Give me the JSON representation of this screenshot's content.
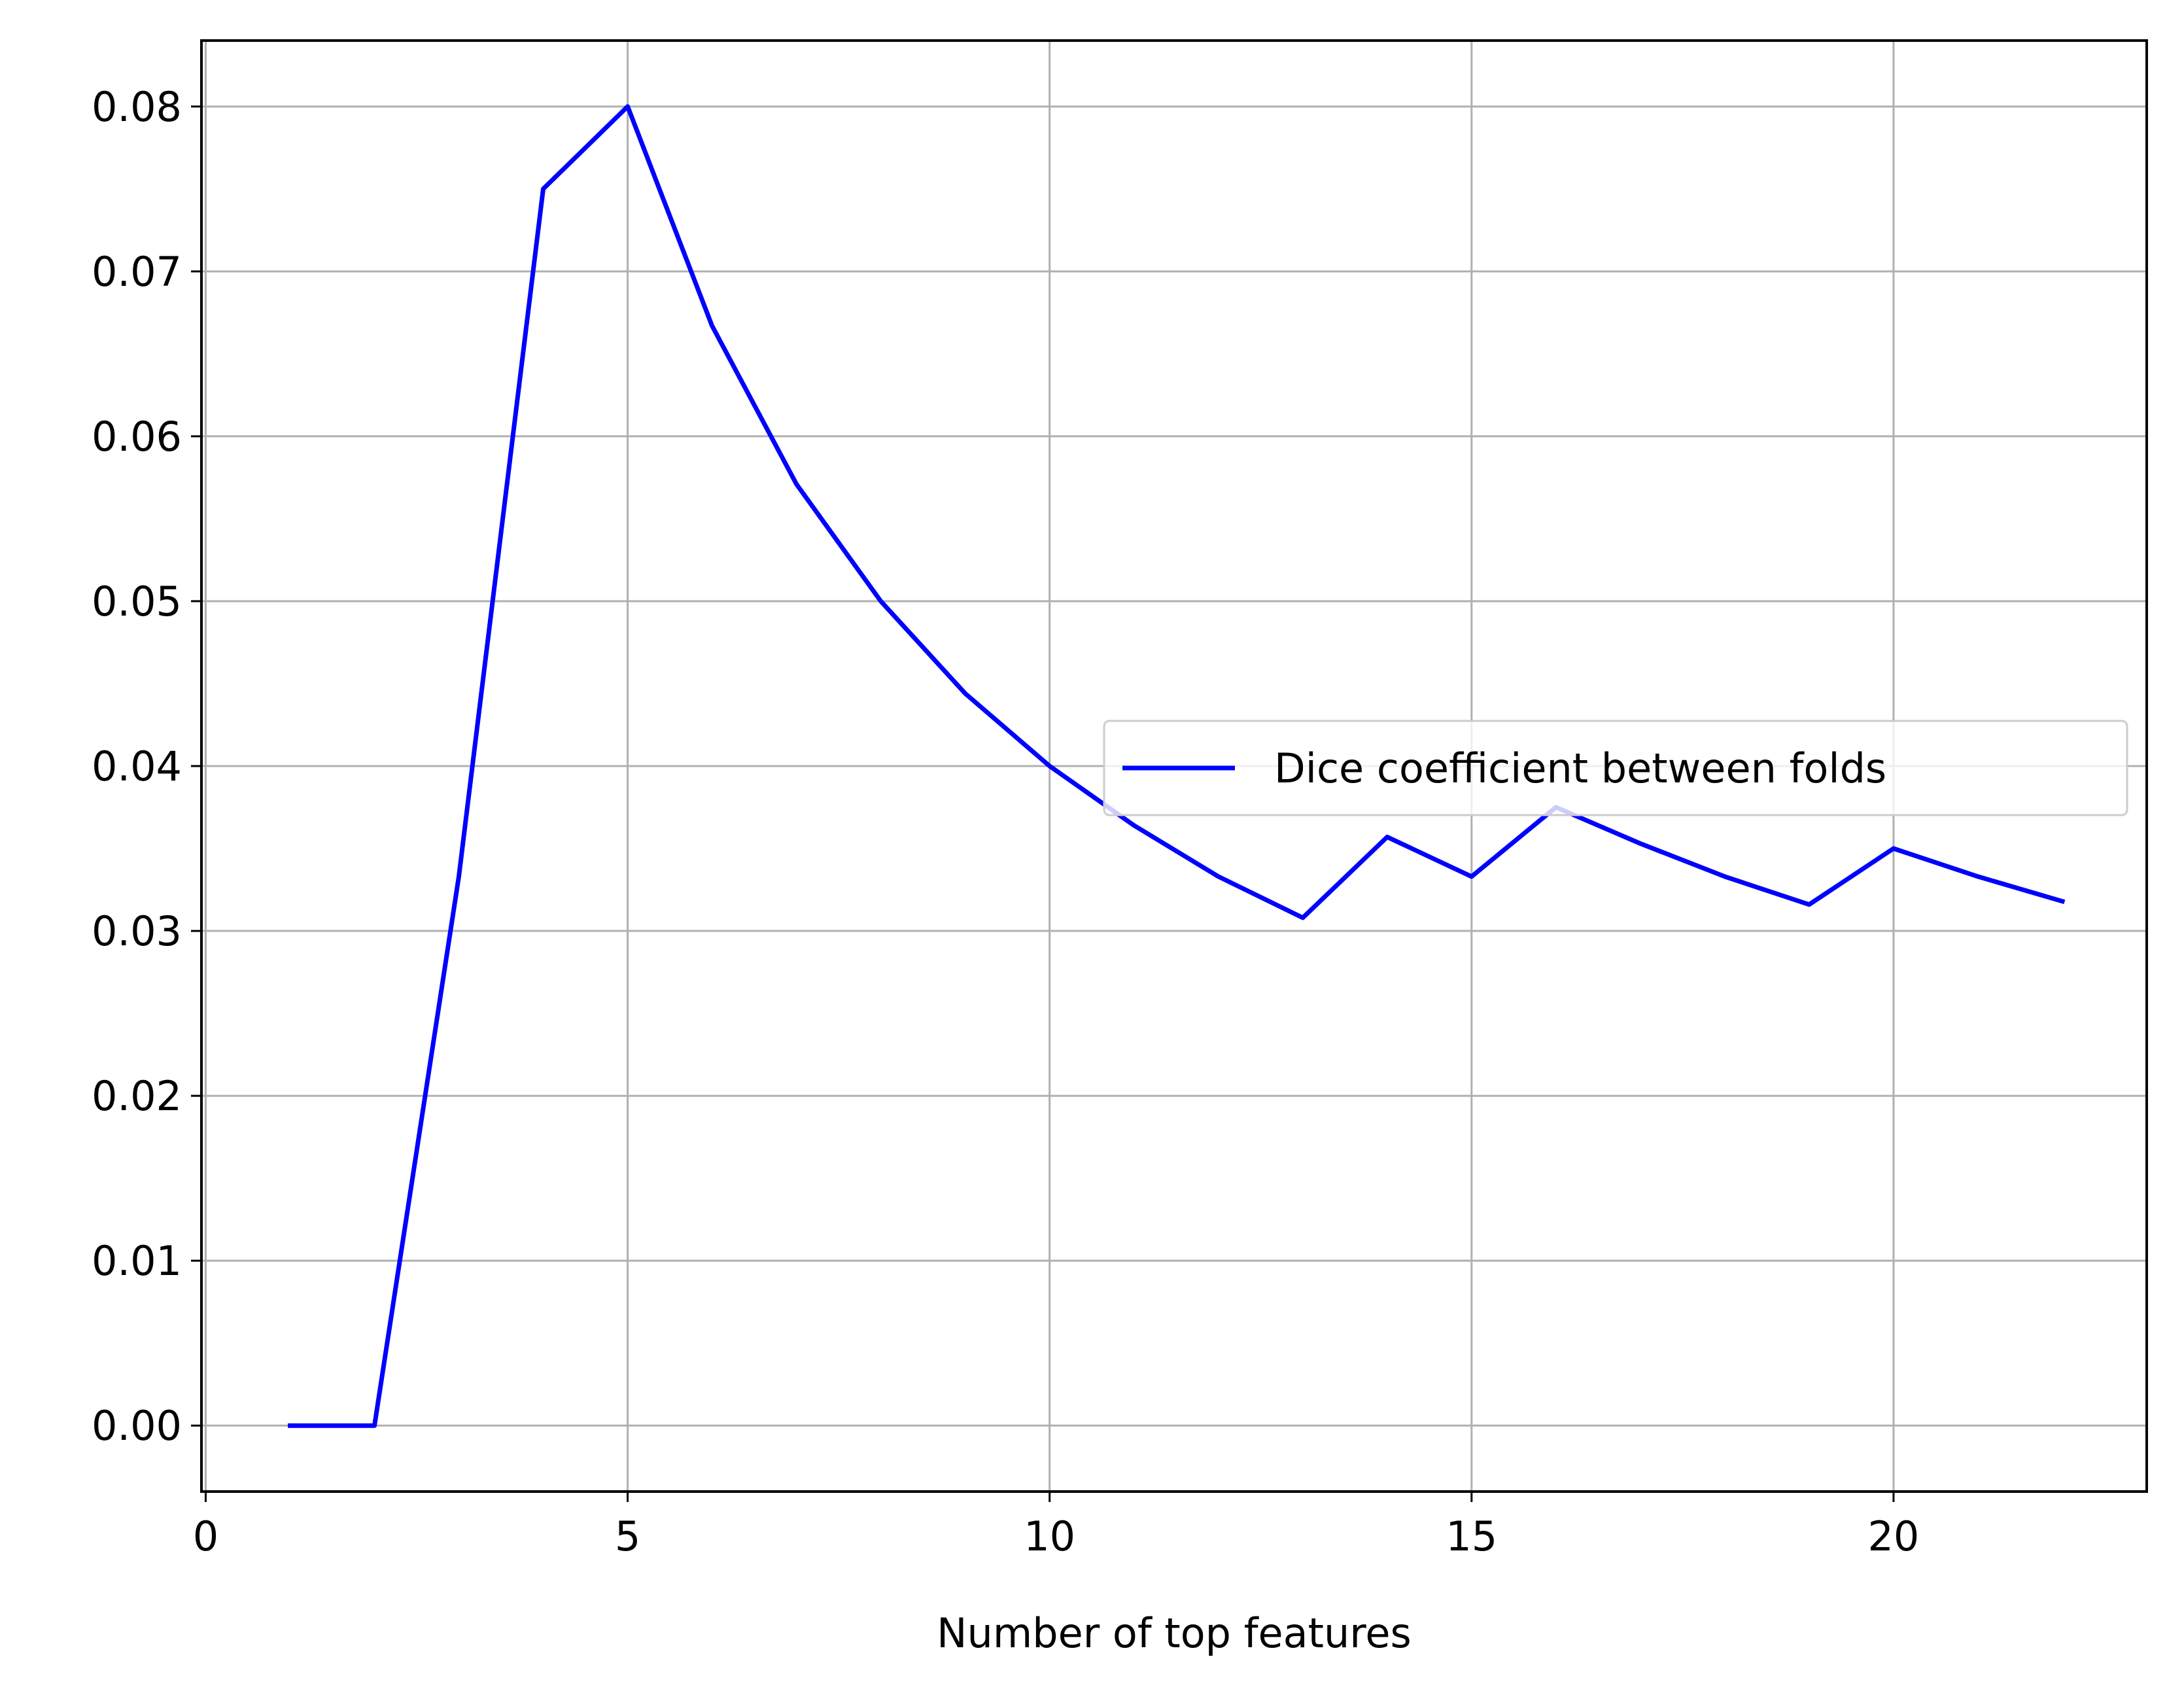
{
  "chart_data": {
    "type": "line",
    "xlabel": "Number of top features",
    "ylabel": "",
    "xlim": [
      -0.05,
      23.0
    ],
    "ylim": [
      -0.004,
      0.084
    ],
    "xticks": [
      0,
      5,
      10,
      15,
      20
    ],
    "yticks": [
      0.0,
      0.01,
      0.02,
      0.03,
      0.04,
      0.05,
      0.06,
      0.07,
      0.08
    ],
    "xtick_labels": [
      "0",
      "5",
      "10",
      "15",
      "20"
    ],
    "ytick_labels": [
      "0.00",
      "0.01",
      "0.02",
      "0.03",
      "0.04",
      "0.05",
      "0.06",
      "0.07",
      "0.08"
    ],
    "grid": true,
    "legend_position": "center-right",
    "series": [
      {
        "name": "Dice coefficient between folds",
        "color": "#0000ff",
        "x": [
          1,
          2,
          3,
          4,
          5,
          6,
          7,
          8,
          9,
          10,
          11,
          12,
          13,
          14,
          15,
          16,
          17,
          18,
          19,
          20,
          21,
          22
        ],
        "y": [
          0.0,
          0.0,
          0.0333,
          0.075,
          0.08,
          0.0667,
          0.0571,
          0.05,
          0.0444,
          0.04,
          0.0364,
          0.0333,
          0.0308,
          0.0357,
          0.0333,
          0.0375,
          0.0353,
          0.0333,
          0.0316,
          0.035,
          0.0333,
          0.0318
        ]
      }
    ]
  }
}
